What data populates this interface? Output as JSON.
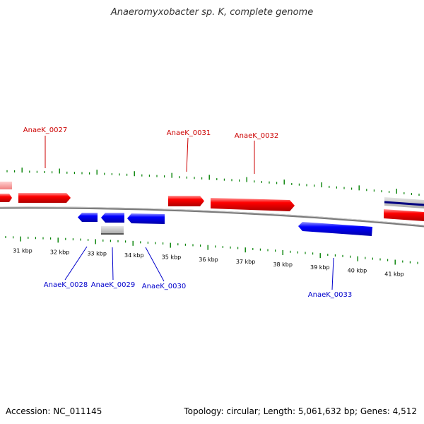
{
  "title": "Anaeromyxobacter sp. K, complete genome",
  "footer": {
    "accession": "Accession: NC_011145",
    "summary": "Topology: circular; Length: 5,061,632 bp; Genes: 4,512"
  },
  "colors": {
    "forward_gene": "#ff0000",
    "reverse_gene": "#0000ff",
    "forward_label": "#cc0000",
    "reverse_label": "#0000cc",
    "tick": "#008000",
    "backbone": "#777777",
    "other_feature": "#bbbbbb"
  },
  "kbp_labels": [
    "31 kbp",
    "32 kbp",
    "33 kbp",
    "34 kbp",
    "35 kbp",
    "36 kbp",
    "37 kbp",
    "38 kbp",
    "39 kbp",
    "40 kbp",
    "41 kbp"
  ],
  "labeled_genes": [
    {
      "label": "AnaeK_0027",
      "strand": "forward"
    },
    {
      "label": "AnaeK_0028",
      "strand": "reverse"
    },
    {
      "label": "AnaeK_0029",
      "strand": "reverse"
    },
    {
      "label": "AnaeK_0030",
      "strand": "reverse"
    },
    {
      "label": "AnaeK_0031",
      "strand": "forward"
    },
    {
      "label": "AnaeK_0032",
      "strand": "forward"
    },
    {
      "label": "AnaeK_0033",
      "strand": "reverse"
    }
  ]
}
